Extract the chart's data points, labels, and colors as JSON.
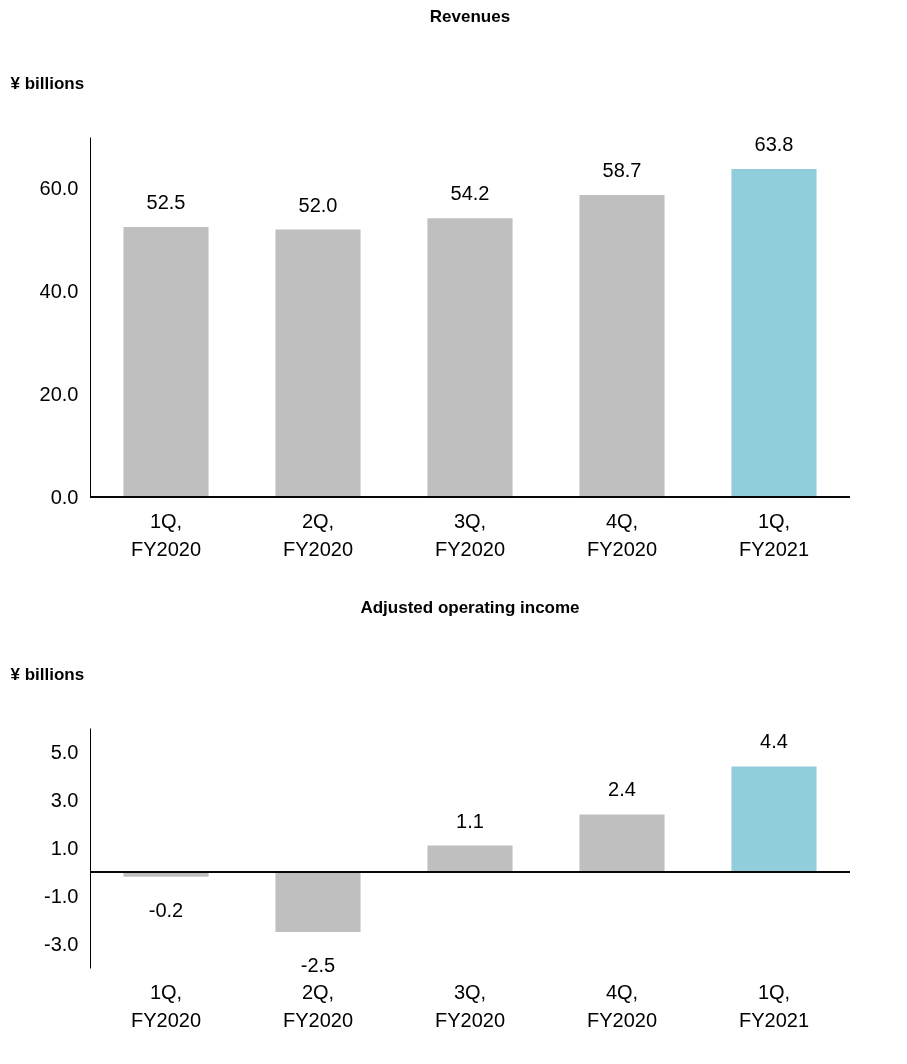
{
  "chart_data": [
    {
      "type": "bar",
      "title": "Revenues",
      "ylabel": "¥ billions",
      "categories": [
        "1Q, FY2020",
        "2Q, FY2020",
        "3Q, FY2020",
        "4Q, FY2020",
        "1Q, FY2021"
      ],
      "values": [
        52.5,
        52.0,
        54.2,
        58.7,
        63.8
      ],
      "value_labels": [
        "52.5",
        "52.0",
        "54.2",
        "58.7",
        "63.8"
      ],
      "colors": [
        "#bfbfbf",
        "#bfbfbf",
        "#bfbfbf",
        "#bfbfbf",
        "#92cddc"
      ],
      "ylim": [
        0,
        70
      ],
      "yticks": [
        {
          "value": 0,
          "label": "0.0"
        },
        {
          "value": 20,
          "label": "20.0"
        },
        {
          "value": 40,
          "label": "40.0"
        },
        {
          "value": 60,
          "label": "60.0"
        }
      ]
    },
    {
      "type": "bar",
      "title": "Adjusted operating income",
      "ylabel": "¥ billions",
      "categories": [
        "1Q, FY2020",
        "2Q, FY2020",
        "3Q, FY2020",
        "4Q, FY2020",
        "1Q, FY2021"
      ],
      "values": [
        -0.2,
        -2.5,
        1.1,
        2.4,
        4.4
      ],
      "value_labels": [
        "-0.2",
        "-2.5",
        "1.1",
        "2.4",
        "4.4"
      ],
      "colors": [
        "#bfbfbf",
        "#bfbfbf",
        "#bfbfbf",
        "#bfbfbf",
        "#92cddc"
      ],
      "ylim": [
        -4,
        6
      ],
      "yticks": [
        {
          "value": -3,
          "label": "-3.0"
        },
        {
          "value": -1,
          "label": "-1.0"
        },
        {
          "value": 1,
          "label": "1.0"
        },
        {
          "value": 3,
          "label": "3.0"
        },
        {
          "value": 5,
          "label": "5.0"
        }
      ]
    }
  ]
}
